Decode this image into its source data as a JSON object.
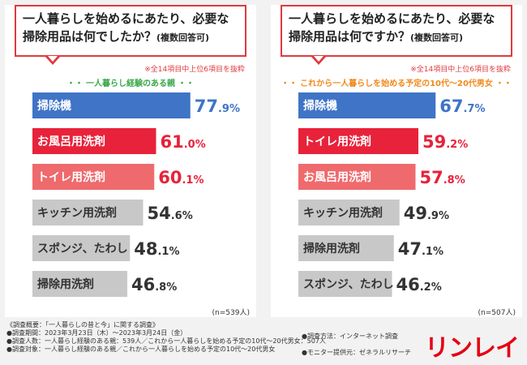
{
  "colors": {
    "top1": "#3f74c6",
    "top2": "#e8223a",
    "top3": "#ef6a6c",
    "rest": "#c8c8c8",
    "accent": "#e03a3e"
  },
  "left": {
    "question_main": "一人暮らしを始めるにあたり、必要な",
    "question_line2": "掃除用品は何でしたか？",
    "question_sub": "(複数回答可)",
    "note": "※全14項目中上位6項目を抜粋",
    "group": "・・ 一人暮らし経験のある親 ・・",
    "n": "(n=539人)"
  },
  "right": {
    "question_main": "一人暮らしを始めるにあたり、必要な",
    "question_line2": "掃除用品は何ですか？",
    "question_sub": "(複数回答可)",
    "note": "※全14項目中上位6項目を抜粋",
    "group": "・・ これから一人暮らしを始める予定の10代～20代男女 ・・",
    "n": "(n=507人)"
  },
  "chart_data": [
    {
      "type": "bar",
      "orientation": "horizontal",
      "title": "一人暮らしを始めるにあたり、必要な掃除用品は何でしたか？(複数回答可)",
      "group": "一人暮らし経験のある親",
      "unit": "%",
      "categories": [
        "掃除機",
        "お風呂用洗剤",
        "トイレ用洗剤",
        "キッチン用洗剤",
        "スポンジ、たわし",
        "掃除用洗剤"
      ],
      "values": [
        77.9,
        61.0,
        60.1,
        54.6,
        48.1,
        46.8
      ],
      "xlim": [
        0,
        100
      ]
    },
    {
      "type": "bar",
      "orientation": "horizontal",
      "title": "一人暮らしを始めるにあたり、必要な掃除用品は何ですか？(複数回答可)",
      "group": "これから一人暮らしを始める予定の10代～20代男女",
      "unit": "%",
      "categories": [
        "掃除機",
        "トイレ用洗剤",
        "お風呂用洗剤",
        "キッチン用洗剤",
        "掃除用洗剤",
        "スポンジ、たわし"
      ],
      "values": [
        67.7,
        59.2,
        57.8,
        49.9,
        47.1,
        46.2
      ],
      "xlim": [
        0,
        100
      ]
    }
  ],
  "footer": {
    "line1": "《調査概要：「一人暮らしの昔と今」に関する調査》",
    "line2": "●調査期間：2023年3月23日（木）～2023年3月24日（金）",
    "line3": "●調査人数：一人暮らし経験のある親：539人／これから一人暮らしを始める予定の10代～20代男女：507人",
    "line4": "●調査対象：一人暮らし経験のある親／これから一人暮らしを始める予定の10代～20代男女",
    "method": "●調査方法：インターネット調査",
    "provider": "●モニター提供元：ゼネラルリサーチ"
  },
  "logo": "リンレイ"
}
